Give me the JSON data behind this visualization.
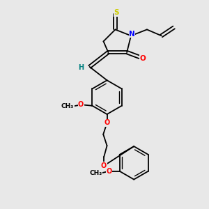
{
  "background_color": "#e8e8e8",
  "bond_color": "#000000",
  "atom_colors": {
    "S": "#cccc00",
    "N": "#0000ff",
    "O": "#ff0000",
    "H": "#008080",
    "C": "#000000"
  },
  "figsize": [
    3.0,
    3.0
  ],
  "dpi": 100,
  "xlim": [
    0,
    10
  ],
  "ylim": [
    0,
    10
  ]
}
